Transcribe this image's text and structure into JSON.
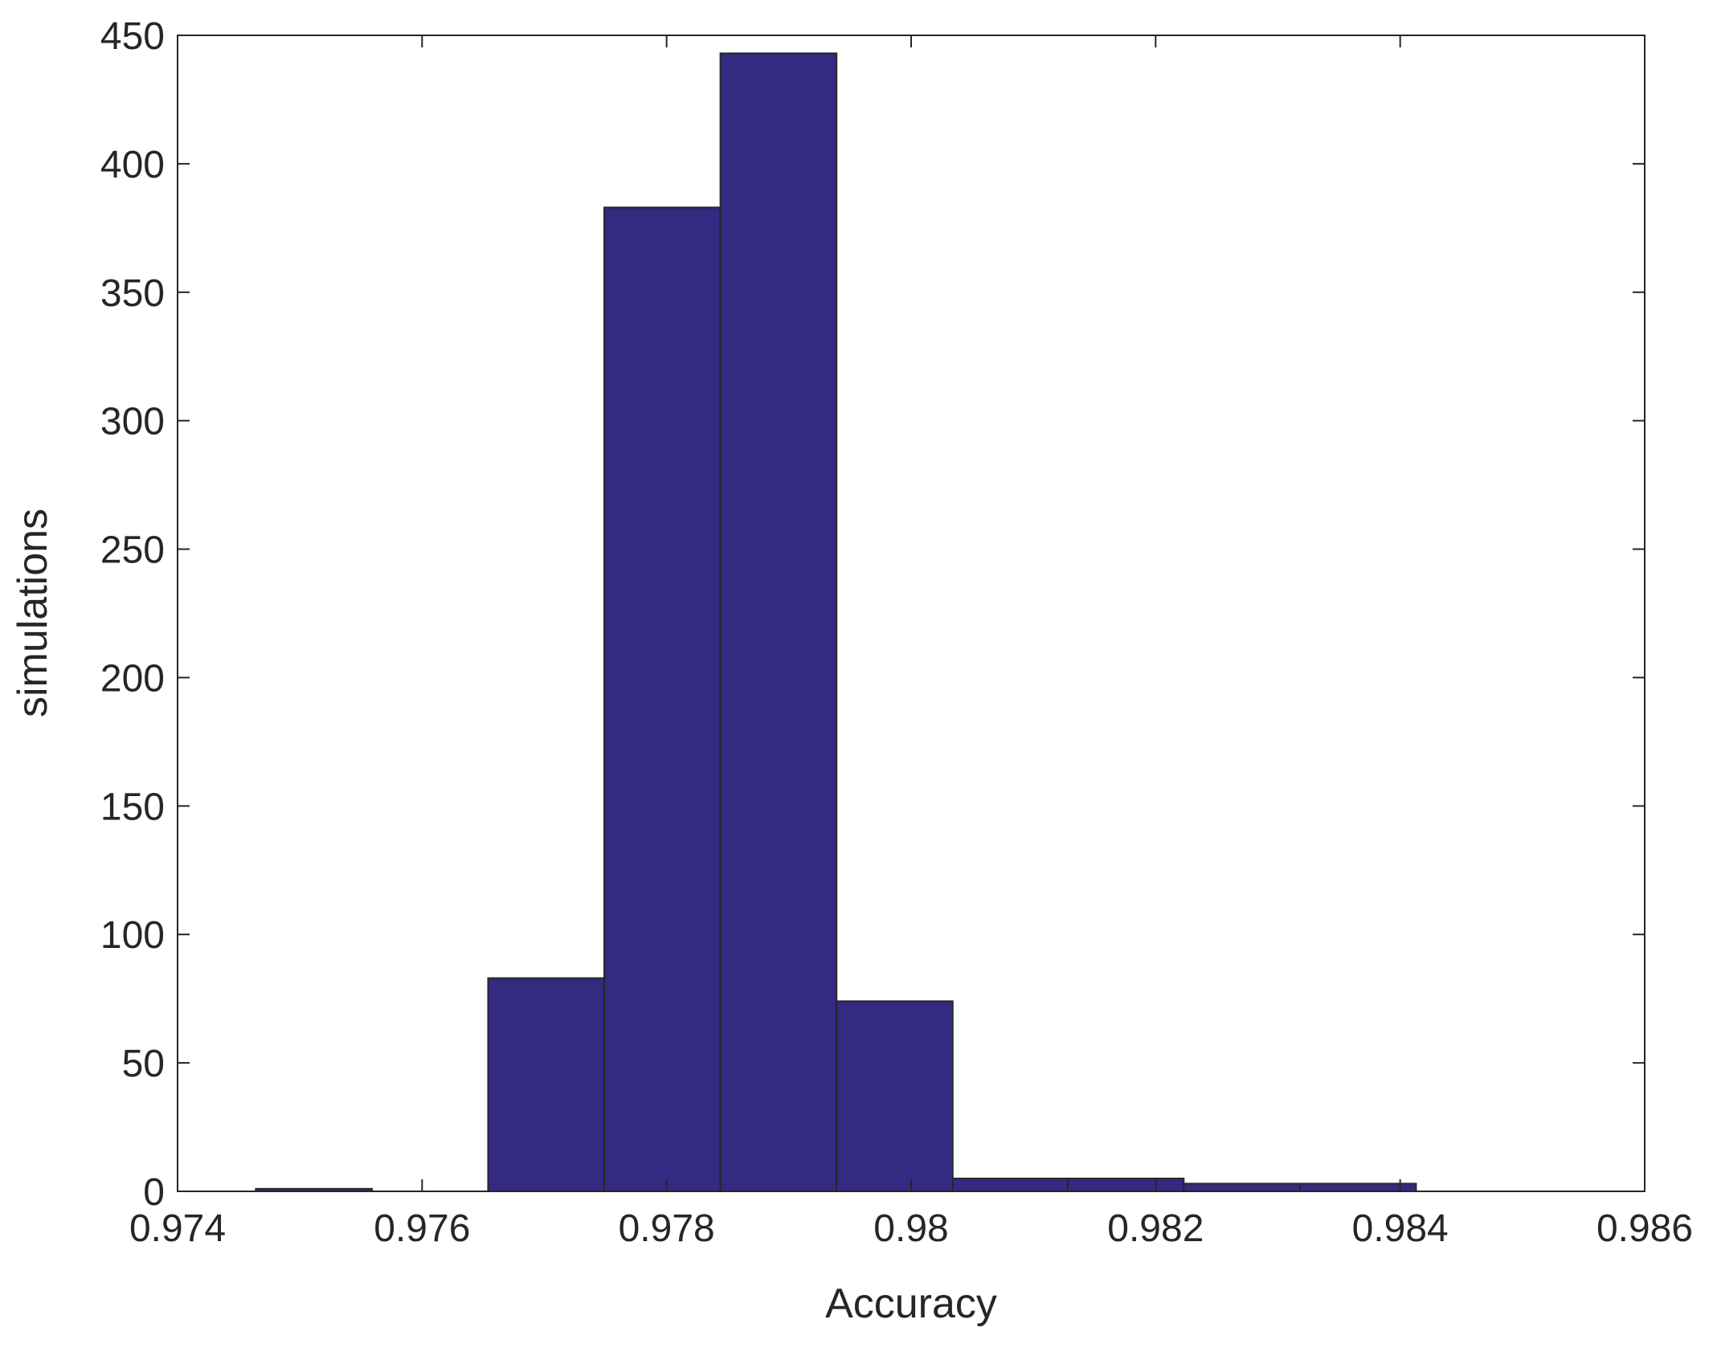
{
  "chart_data": {
    "type": "histogram",
    "xlabel": "Accuracy",
    "ylabel": "simulations",
    "bins": [
      0.97464,
      0.97559,
      0.97654,
      0.97749,
      0.97844,
      0.97939,
      0.98034,
      0.98128,
      0.98223,
      0.98318,
      0.98413
    ],
    "values": [
      1,
      0,
      83,
      383,
      443,
      74,
      5,
      5,
      3,
      3
    ],
    "color": "#332a82",
    "xlim": [
      0.974,
      0.986
    ],
    "xticks": [
      0.974,
      0.976,
      0.978,
      0.98,
      0.982,
      0.984,
      0.986
    ],
    "ylim": [
      0,
      450
    ],
    "yticks": [
      0,
      50,
      100,
      150,
      200,
      250,
      300,
      350,
      400,
      450
    ]
  }
}
